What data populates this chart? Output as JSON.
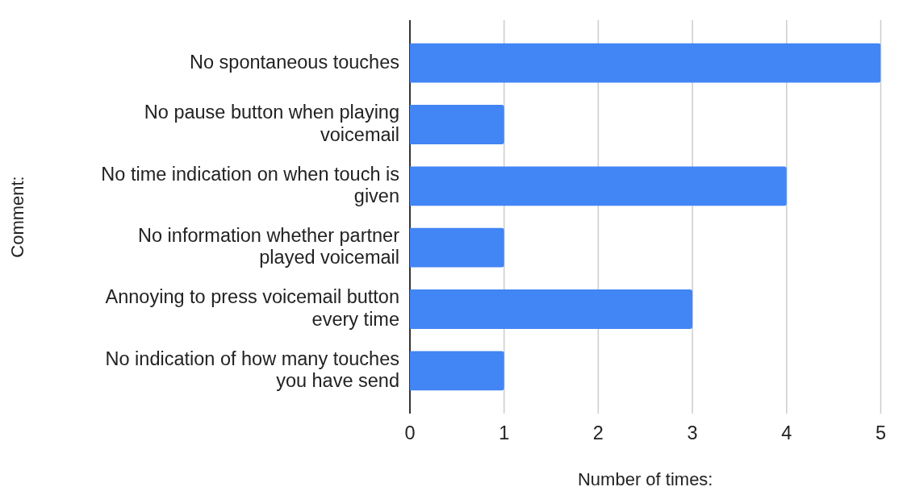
{
  "chart_data": {
    "type": "bar",
    "orientation": "horizontal",
    "categories": [
      "No spontaneous touches",
      "No pause button when playing voicemail",
      "No time indication on when touch is given",
      "No information whether partner played voicemail",
      "Annoying to press voicemail button every time",
      "No indication of how many touches you have send"
    ],
    "values": [
      5,
      1,
      4,
      1,
      3,
      1
    ],
    "color": "#4285f4",
    "xlim": [
      0,
      5
    ],
    "xticks": [
      0,
      1,
      2,
      3,
      4,
      5
    ],
    "xlabel": "Number of times:",
    "ylabel": "Comment:",
    "grid": "x",
    "legend": false
  }
}
